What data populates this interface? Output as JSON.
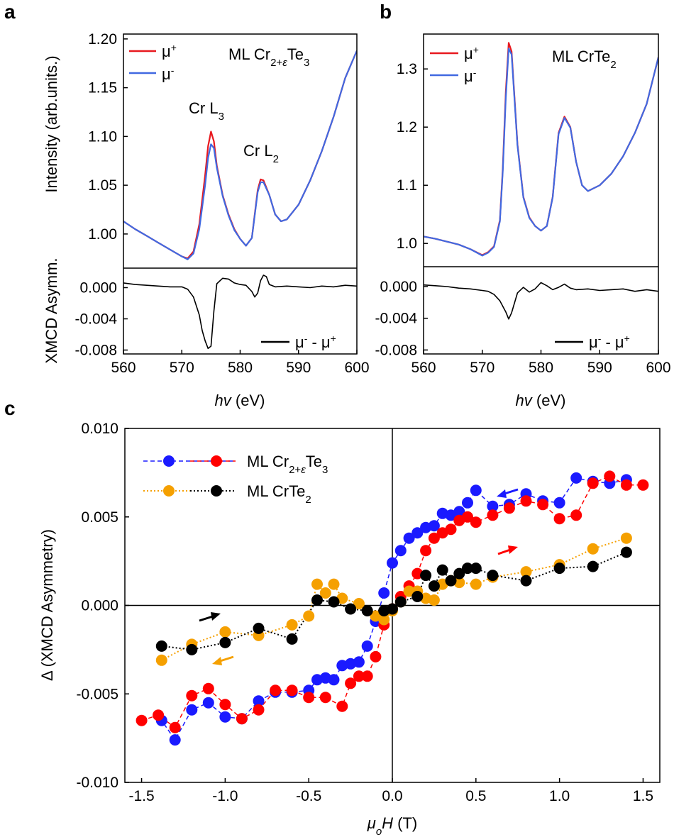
{
  "chart_data": [
    {
      "type": "line",
      "panel": "a",
      "title": "ML Cr2+εTe3",
      "xlabel": "hv (eV)",
      "ylabel_top": "Intensity (arb.units.)",
      "ylabel_bottom": "XMCD Asymm.",
      "xlim": [
        560,
        600
      ],
      "xticks": [
        "560",
        "570",
        "580",
        "590",
        "600"
      ],
      "ylim_top": [
        0.965,
        1.205
      ],
      "yticks_top": [
        "1.00",
        "1.05",
        "1.10",
        "1.15",
        "1.20"
      ],
      "ylim_bottom": [
        -0.0085,
        0.0025
      ],
      "yticks_bottom": [
        "0.000",
        "-0.004",
        "-0.008"
      ],
      "legend_top": [
        "μ+",
        "μ-"
      ],
      "legend_bottom": "μ- - μ+",
      "annotations": [
        "Cr L3",
        "Cr L2"
      ],
      "series": [
        {
          "name": "μ+",
          "color": "#e8191f",
          "x": [
            560,
            562,
            564,
            566,
            568,
            570,
            571,
            572,
            573,
            574,
            574.5,
            575,
            575.5,
            576,
            577,
            578,
            579,
            580,
            581,
            582,
            583,
            583.5,
            584,
            585,
            586,
            587,
            588,
            590,
            592,
            594,
            596,
            598,
            600
          ],
          "values": [
            1.013,
            1.005,
            0.998,
            0.991,
            0.984,
            0.977,
            0.975,
            0.982,
            1.01,
            1.06,
            1.09,
            1.105,
            1.095,
            1.07,
            1.04,
            1.02,
            1.005,
            0.995,
            0.988,
            0.996,
            1.045,
            1.056,
            1.055,
            1.04,
            1.02,
            1.013,
            1.015,
            1.03,
            1.055,
            1.085,
            1.12,
            1.16,
            1.188
          ]
        },
        {
          "name": "μ-",
          "color": "#4169e1",
          "x": [
            560,
            562,
            564,
            566,
            568,
            570,
            571,
            572,
            573,
            574,
            574.5,
            575,
            575.5,
            576,
            577,
            578,
            579,
            580,
            581,
            582,
            583,
            583.5,
            584,
            585,
            586,
            587,
            588,
            590,
            592,
            594,
            596,
            598,
            600
          ],
          "values": [
            1.013,
            1.005,
            0.998,
            0.991,
            0.984,
            0.977,
            0.974,
            0.98,
            1.005,
            1.05,
            1.078,
            1.092,
            1.088,
            1.068,
            1.039,
            1.019,
            1.004,
            0.995,
            0.988,
            0.996,
            1.043,
            1.053,
            1.053,
            1.04,
            1.02,
            1.013,
            1.015,
            1.03,
            1.055,
            1.085,
            1.12,
            1.16,
            1.188
          ]
        },
        {
          "name": "μ- - μ+",
          "color": "#000000",
          "x": [
            560,
            562,
            564,
            566,
            568,
            570,
            571,
            572,
            573,
            573.5,
            574,
            574.5,
            575,
            575.5,
            576,
            577,
            578,
            579,
            580,
            581,
            582,
            582.5,
            583,
            583.5,
            584,
            584.5,
            585,
            586,
            588,
            590,
            592,
            594,
            596,
            598,
            600
          ],
          "values": [
            0.0006,
            0.0004,
            0.0003,
            0.0002,
            0.0001,
            0.0001,
            -0.0002,
            -0.0012,
            -0.0035,
            -0.0055,
            -0.0068,
            -0.0078,
            -0.0075,
            -0.003,
            0.0005,
            0.0012,
            0.0011,
            0.0006,
            0.0004,
            0.0003,
            -0.0005,
            -0.0012,
            -0.0007,
            0.0009,
            0.0016,
            0.0014,
            0.0004,
            0.0001,
            0.0002,
            0.0001,
            0.0,
            0.0002,
            0.0001,
            0.0003,
            0.0002
          ]
        }
      ]
    },
    {
      "type": "line",
      "panel": "b",
      "title": "ML CrTe2",
      "xlabel": "hv (eV)",
      "xlim": [
        560,
        600
      ],
      "xticks": [
        "560",
        "570",
        "580",
        "590",
        "600"
      ],
      "ylim_top": [
        0.96,
        1.36
      ],
      "yticks_top": [
        "1.0",
        "1.1",
        "1.2",
        "1.3"
      ],
      "ylim_bottom": [
        -0.0085,
        0.0025
      ],
      "yticks_bottom": [
        "0.000",
        "-0.004",
        "-0.008"
      ],
      "legend_top": [
        "μ+",
        "μ-"
      ],
      "legend_bottom": "μ- - μ+",
      "series": [
        {
          "name": "μ+",
          "color": "#e8191f",
          "x": [
            560,
            562,
            564,
            566,
            568,
            570,
            571,
            572,
            573,
            573.5,
            574,
            574.5,
            575,
            576,
            577,
            578,
            579,
            580,
            581,
            582,
            583,
            584,
            585,
            586,
            587,
            588,
            590,
            592,
            594,
            596,
            598,
            600
          ],
          "values": [
            1.012,
            1.008,
            1.003,
            0.998,
            0.99,
            0.98,
            0.985,
            0.995,
            1.04,
            1.13,
            1.26,
            1.345,
            1.33,
            1.17,
            1.08,
            1.045,
            1.03,
            1.022,
            1.03,
            1.08,
            1.19,
            1.218,
            1.2,
            1.14,
            1.1,
            1.09,
            1.1,
            1.12,
            1.15,
            1.19,
            1.24,
            1.32
          ]
        },
        {
          "name": "μ-",
          "color": "#4169e1",
          "x": [
            560,
            562,
            564,
            566,
            568,
            570,
            571,
            572,
            573,
            573.5,
            574,
            574.5,
            575,
            576,
            577,
            578,
            579,
            580,
            581,
            582,
            583,
            584,
            585,
            586,
            587,
            588,
            590,
            592,
            594,
            596,
            598,
            600
          ],
          "values": [
            1.012,
            1.008,
            1.003,
            0.998,
            0.99,
            0.979,
            0.984,
            0.994,
            1.038,
            1.125,
            1.25,
            1.335,
            1.325,
            1.168,
            1.079,
            1.044,
            1.03,
            1.022,
            1.03,
            1.079,
            1.188,
            1.216,
            1.199,
            1.14,
            1.1,
            1.09,
            1.1,
            1.12,
            1.15,
            1.19,
            1.24,
            1.32
          ]
        },
        {
          "name": "μ- - μ+",
          "color": "#000000",
          "x": [
            560,
            562,
            564,
            566,
            568,
            570,
            571,
            572,
            573,
            574,
            574.5,
            575,
            576,
            577,
            578,
            579,
            580,
            581,
            582,
            583,
            584,
            585,
            586,
            588,
            590,
            592,
            594,
            596,
            598,
            600
          ],
          "values": [
            0.0002,
            0.0001,
            0.0,
            -0.0002,
            -0.0003,
            -0.0005,
            -0.0006,
            -0.001,
            -0.0018,
            -0.0032,
            -0.0041,
            -0.0033,
            -0.0008,
            -0.0001,
            -0.0007,
            -0.0003,
            0.0005,
            0.0001,
            -0.0004,
            -0.0001,
            0.0003,
            -0.0002,
            -0.0004,
            -0.0003,
            -0.0005,
            -0.0004,
            -0.0003,
            -0.0006,
            -0.0004,
            -0.0006
          ]
        }
      ]
    },
    {
      "type": "scatter",
      "panel": "c",
      "xlabel": "μoH (T)",
      "ylabel": "Δ (XMCD Asymmetry)",
      "xlim": [
        -1.6,
        1.6
      ],
      "xticks": [
        "-1.5",
        "-1.0",
        "-0.5",
        "0.0",
        "0.5",
        "1.0",
        "1.5"
      ],
      "ylim": [
        -0.01,
        0.01
      ],
      "yticks": [
        "0.010",
        "0.005",
        "0.000",
        "-0.005",
        "-0.010"
      ],
      "legend": [
        "ML Cr2+εTe3",
        "ML CrTe2"
      ],
      "series": [
        {
          "name": "ML Cr2+εTe3 (down sweep)",
          "color": "#1a1aff",
          "style": "dashed",
          "x": [
            1.4,
            1.3,
            1.2,
            1.1,
            1.0,
            0.9,
            0.8,
            0.7,
            0.6,
            0.5,
            0.45,
            0.4,
            0.35,
            0.3,
            0.25,
            0.2,
            0.15,
            0.1,
            0.05,
            0.0,
            -0.05,
            -0.1,
            -0.15,
            -0.2,
            -0.25,
            -0.3,
            -0.35,
            -0.4,
            -0.45,
            -0.5,
            -0.6,
            -0.7,
            -0.8,
            -0.9,
            -1.0,
            -1.1,
            -1.2,
            -1.3,
            -1.38
          ],
          "values": [
            0.0071,
            0.0069,
            0.007,
            0.0072,
            0.0058,
            0.0059,
            0.0063,
            0.0057,
            0.0056,
            0.0065,
            0.0058,
            0.0053,
            0.0051,
            0.0052,
            0.0045,
            0.0044,
            0.0041,
            0.0038,
            0.0031,
            0.0024,
            0.0007,
            -0.0009,
            -0.0023,
            -0.0032,
            -0.0033,
            -0.0034,
            -0.0042,
            -0.0041,
            -0.0042,
            -0.0048,
            -0.0049,
            -0.0049,
            -0.0054,
            -0.0064,
            -0.0063,
            -0.0055,
            -0.0059,
            -0.0076,
            -0.0065
          ]
        },
        {
          "name": "ML Cr2+εTe3 (up sweep)",
          "color": "#ff0000",
          "style": "dashed",
          "x": [
            -1.5,
            -1.4,
            -1.3,
            -1.2,
            -1.1,
            -1.0,
            -0.9,
            -0.8,
            -0.7,
            -0.6,
            -0.5,
            -0.4,
            -0.3,
            -0.25,
            -0.2,
            -0.15,
            -0.1,
            -0.05,
            0.0,
            0.05,
            0.1,
            0.15,
            0.2,
            0.25,
            0.3,
            0.35,
            0.4,
            0.45,
            0.5,
            0.6,
            0.7,
            0.8,
            0.9,
            1.0,
            1.1,
            1.2,
            1.3,
            1.4,
            1.5
          ],
          "values": [
            -0.0065,
            -0.0062,
            -0.0069,
            -0.0051,
            -0.0047,
            -0.0056,
            -0.0064,
            -0.0059,
            -0.0048,
            -0.0048,
            -0.0052,
            -0.0052,
            -0.0057,
            -0.0044,
            -0.004,
            -0.004,
            -0.0029,
            -0.0011,
            -0.0002,
            0.0005,
            0.0011,
            0.0018,
            0.0031,
            0.0038,
            0.0041,
            0.0043,
            0.0048,
            0.005,
            0.0047,
            0.0051,
            0.0055,
            0.0059,
            0.0057,
            0.0049,
            0.0051,
            0.0069,
            0.0073,
            0.0068,
            0.0068
          ]
        },
        {
          "name": "ML CrTe2 (down sweep)",
          "color": "#f5a000",
          "style": "dotted",
          "x": [
            1.4,
            1.2,
            1.0,
            0.8,
            0.6,
            0.5,
            0.4,
            0.35,
            0.3,
            0.25,
            0.2,
            0.15,
            0.1,
            0.05,
            0.0,
            -0.05,
            -0.1,
            -0.2,
            -0.3,
            -0.35,
            -0.4,
            -0.45,
            -0.5,
            -0.6,
            -0.8,
            -1.0,
            -1.2,
            -1.38
          ],
          "values": [
            0.0038,
            0.0032,
            0.0023,
            0.0019,
            0.0016,
            0.0012,
            0.0013,
            0.0014,
            0.0012,
            0.0003,
            0.0004,
            0.0008,
            0.0008,
            0.0002,
            -0.0003,
            -0.0008,
            -0.0006,
            0.0001,
            0.0004,
            0.0012,
            0.0007,
            0.0012,
            -0.0006,
            -0.0011,
            -0.0017,
            -0.0015,
            -0.0022,
            -0.0031
          ]
        },
        {
          "name": "ML CrTe2 (up sweep)",
          "color": "#000000",
          "style": "dotted",
          "x": [
            -1.38,
            -1.2,
            -1.0,
            -0.8,
            -0.6,
            -0.45,
            -0.35,
            -0.25,
            -0.15,
            -0.05,
            0.0,
            0.05,
            0.15,
            0.2,
            0.25,
            0.3,
            0.35,
            0.4,
            0.45,
            0.5,
            0.6,
            0.8,
            1.0,
            1.2,
            1.4
          ],
          "values": [
            -0.0023,
            -0.0025,
            -0.0021,
            -0.0013,
            -0.0019,
            0.0003,
            0.0002,
            -0.0002,
            -0.0003,
            -0.0003,
            -0.0002,
            0.0002,
            0.0005,
            0.0017,
            0.0011,
            0.002,
            0.0014,
            0.0018,
            0.0021,
            0.0021,
            0.0017,
            0.0014,
            0.0021,
            0.0022,
            0.003
          ]
        }
      ]
    }
  ]
}
